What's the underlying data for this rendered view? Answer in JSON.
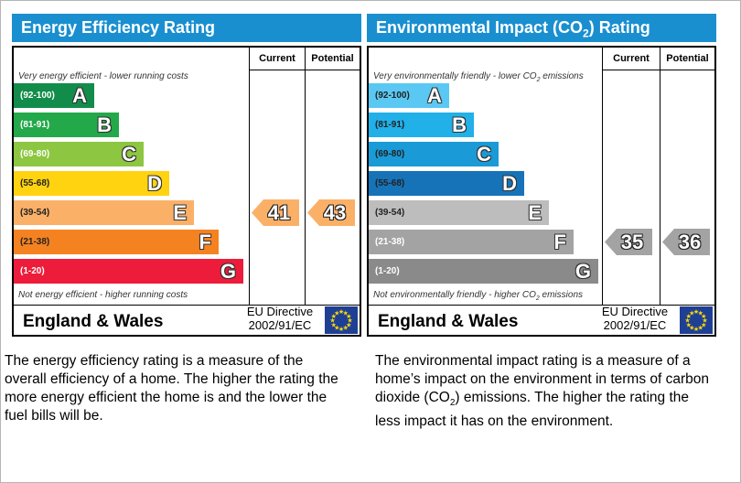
{
  "chart_data": [
    {
      "type": "bar",
      "title": "Energy Efficiency Rating",
      "header_color": "#1a8fd0",
      "columns": [
        "Current",
        "Potential"
      ],
      "top_note": "Very energy efficient - lower running costs",
      "bottom_note": "Not energy efficient - higher running costs",
      "bands": [
        {
          "range": "(92-100)",
          "letter": "A",
          "color": "#128c4a",
          "range_color": "#ffffff"
        },
        {
          "range": "(81-91)",
          "letter": "B",
          "color": "#23a84a",
          "range_color": "#ffffff"
        },
        {
          "range": "(69-80)",
          "letter": "C",
          "color": "#8dc641",
          "range_color": "#ffffff"
        },
        {
          "range": "(55-68)",
          "letter": "D",
          "color": "#ffd30f",
          "range_color": "#222222"
        },
        {
          "range": "(39-54)",
          "letter": "E",
          "color": "#fbb068",
          "range_color": "#222222"
        },
        {
          "range": "(21-38)",
          "letter": "F",
          "color": "#f58220",
          "range_color": "#222222"
        },
        {
          "range": "(1-20)",
          "letter": "G",
          "color": "#ec1c3a",
          "range_color": "#ffffff"
        }
      ],
      "current": {
        "value": 41,
        "band": "E",
        "color": "#fbb068"
      },
      "potential": {
        "value": 43,
        "band": "E",
        "color": "#fbb068"
      },
      "region": "England & Wales",
      "directive_line1": "EU Directive",
      "directive_line2": "2002/91/EC"
    },
    {
      "type": "bar",
      "title_parts": [
        "Environmental Impact (CO",
        "2",
        ") Rating"
      ],
      "header_color": "#1a8fd0",
      "columns": [
        "Current",
        "Potential"
      ],
      "top_note_parts": [
        "Very environmentally friendly - lower CO",
        "2",
        " emissions"
      ],
      "bottom_note_parts": [
        "Not environmentally friendly - higher CO",
        "2",
        " emissions"
      ],
      "bands": [
        {
          "range": "(92-100)",
          "letter": "A",
          "color": "#5ac8f2",
          "range_color": "#222222"
        },
        {
          "range": "(81-91)",
          "letter": "B",
          "color": "#21b0e8",
          "range_color": "#222222"
        },
        {
          "range": "(69-80)",
          "letter": "C",
          "color": "#1a9ad6",
          "range_color": "#222222"
        },
        {
          "range": "(55-68)",
          "letter": "D",
          "color": "#1673b8",
          "range_color": "#222222"
        },
        {
          "range": "(39-54)",
          "letter": "E",
          "color": "#bdbdbd",
          "range_color": "#222222"
        },
        {
          "range": "(21-38)",
          "letter": "F",
          "color": "#a3a3a3",
          "range_color": "#ffffff"
        },
        {
          "range": "(1-20)",
          "letter": "G",
          "color": "#8a8a8a",
          "range_color": "#ffffff"
        }
      ],
      "current": {
        "value": 35,
        "band": "F",
        "color": "#a3a3a3"
      },
      "potential": {
        "value": 36,
        "band": "F",
        "color": "#a3a3a3"
      },
      "region": "England & Wales",
      "directive_line1": "EU Directive",
      "directive_line2": "2002/91/EC"
    }
  ],
  "captions": {
    "energy": [
      "The energy efficiency rating is a measure of the",
      "overall efficiency of a home. The higher the rating the",
      "more energy efficient the home is and the lower the",
      "fuel bills will be."
    ],
    "environment_line1": "The environmental impact rating is a measure of a",
    "environment_line2": "home’s impact on the environment in terms of carbon",
    "environment_line3_parts": [
      "dioxide (CO",
      "2",
      ") emissions. The higher the rating the"
    ],
    "environment_line4": "less impact it has on the environment."
  },
  "icons": {
    "eu_flag": "eu-flag-icon"
  }
}
